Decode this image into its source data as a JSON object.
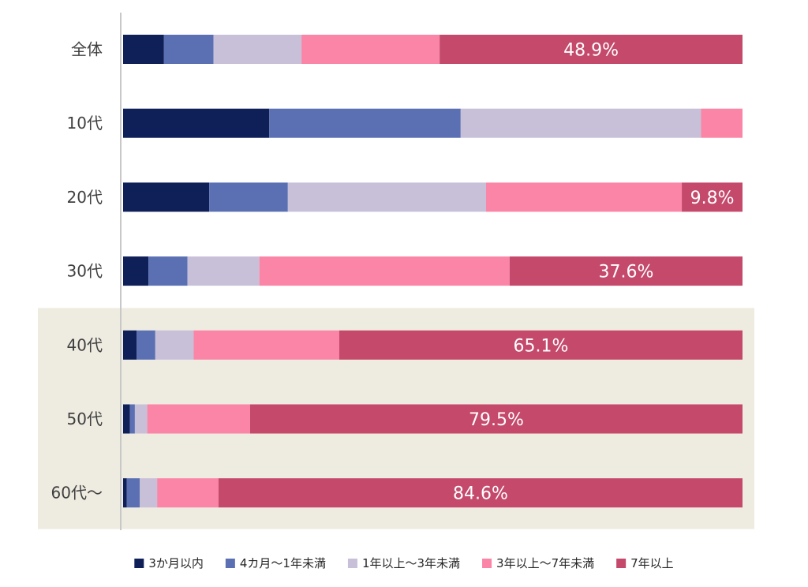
{
  "chart_data": {
    "type": "bar",
    "orientation": "horizontal",
    "stacked": "100%",
    "categories": [
      "全体",
      "10代",
      "20代",
      "30代",
      "40代",
      "50代",
      "60代～"
    ],
    "series": [
      {
        "name": "3か月以内",
        "color": "#0f1f57",
        "values": [
          6.6,
          23.6,
          13.9,
          4.1,
          2.2,
          1.1,
          0.6
        ]
      },
      {
        "name": "4カ月～1年未満",
        "color": "#5b70b3",
        "values": [
          8.0,
          30.9,
          12.7,
          6.3,
          3.0,
          0.8,
          2.1
        ]
      },
      {
        "name": "1年以上～3年未満",
        "color": "#c8c0d8",
        "values": [
          14.2,
          38.8,
          32.0,
          11.6,
          6.2,
          2.0,
          2.8
        ]
      },
      {
        "name": "3年以上～7年未満",
        "color": "#fa85a6",
        "values": [
          22.3,
          6.7,
          31.6,
          40.4,
          23.5,
          16.6,
          9.9
        ]
      },
      {
        "name": "7年以上",
        "color": "#c4496b",
        "values": [
          48.9,
          0.0,
          9.8,
          37.6,
          65.1,
          79.5,
          84.6
        ]
      }
    ],
    "data_labels": [
      {
        "category": "全体",
        "series": "7年以上",
        "text": "48.9%"
      },
      {
        "category": "20代",
        "series": "7年以上",
        "text": "9.8%"
      },
      {
        "category": "30代",
        "series": "7年以上",
        "text": "37.6%"
      },
      {
        "category": "40代",
        "series": "7年以上",
        "text": "65.1%"
      },
      {
        "category": "50代",
        "series": "7年以上",
        "text": "79.5%"
      },
      {
        "category": "60代～",
        "series": "7年以上",
        "text": "84.6%"
      }
    ],
    "highlight_categories": [
      "40代",
      "50代",
      "60代～"
    ],
    "highlight_color": "#eeebe1",
    "axis_color": "#c8c8c8",
    "xlim": [
      0,
      100
    ],
    "legend_position": "bottom"
  }
}
